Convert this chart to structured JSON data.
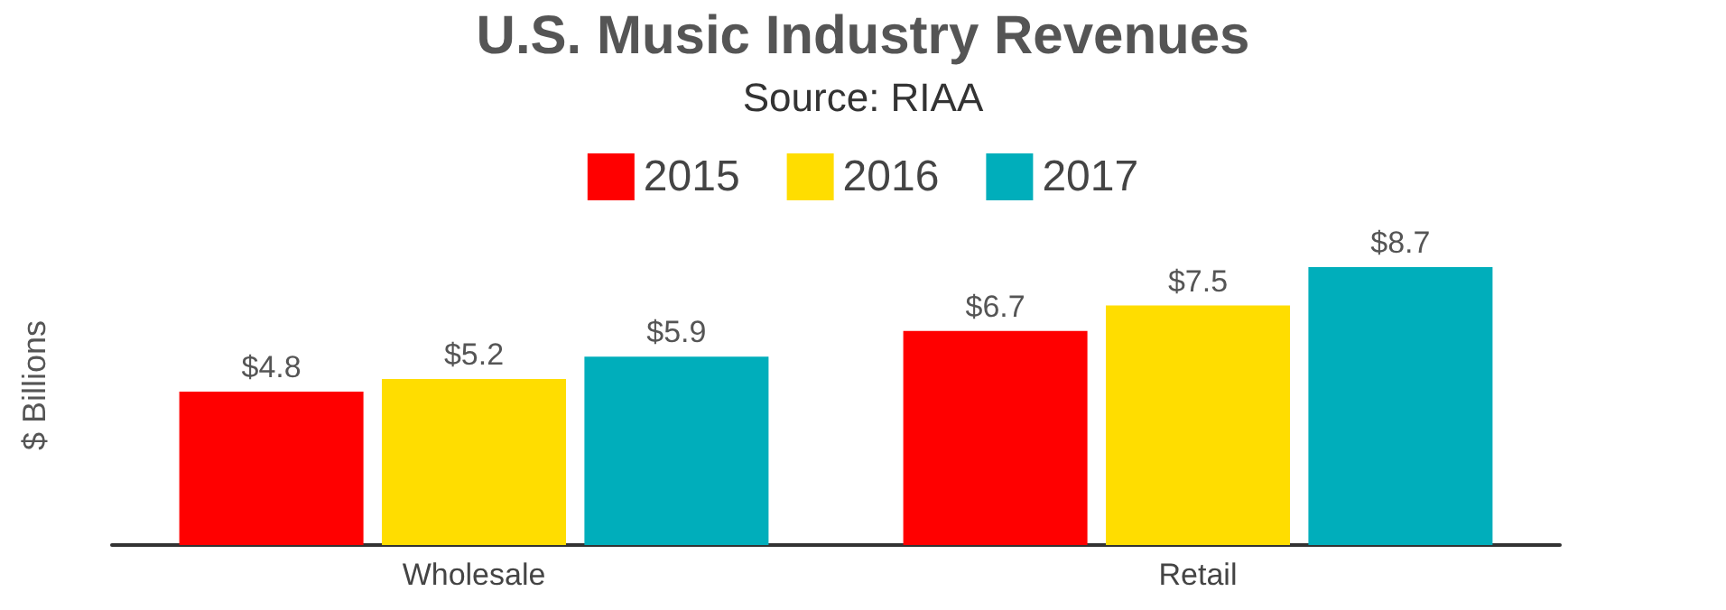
{
  "chart_data": {
    "type": "bar",
    "title": "U.S. Music Industry Revenues",
    "subtitle": "Source: RIAA",
    "ylabel": "$ Billions",
    "categories": [
      "Wholesale",
      "Retail"
    ],
    "series": [
      {
        "name": "2015",
        "color": "#ff0000",
        "values": [
          4.8,
          6.7
        ],
        "value_labels": [
          "$4.8",
          "$6.7"
        ]
      },
      {
        "name": "2016",
        "color": "#ffdd00",
        "values": [
          5.2,
          7.5
        ],
        "value_labels": [
          "$5.2",
          "$7.5"
        ]
      },
      {
        "name": "2017",
        "color": "#00aebb",
        "values": [
          5.9,
          8.7
        ],
        "value_labels": [
          "$5.9",
          "$8.7"
        ]
      }
    ],
    "legend": "top",
    "grid": false
  }
}
